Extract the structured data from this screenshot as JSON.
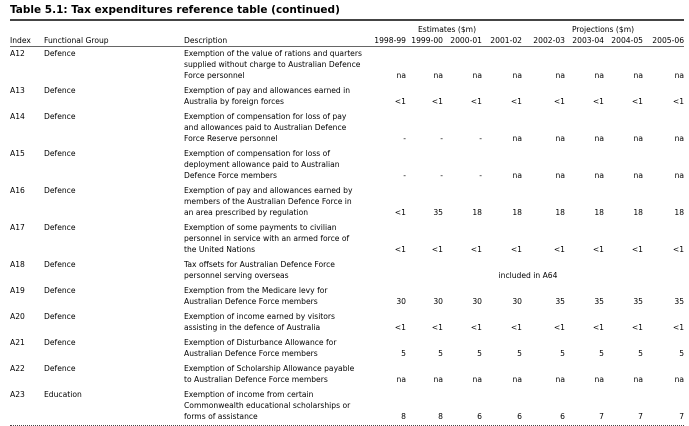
{
  "title": "Table 5.1:  Tax expenditures reference table (continued)",
  "header": {
    "estimates": "Estimates ($m)",
    "projections": "Projections ($m)",
    "index": "Index",
    "functional_group": "Functional Group",
    "description": "Description",
    "years": [
      "1998-99",
      "1999-00",
      "2000-01",
      "2001-02",
      "2002-03",
      "2003-04",
      "2004-05",
      "2005-06"
    ]
  },
  "rows": [
    {
      "index": "A12",
      "group": "Defence",
      "description": [
        "Exemption of the value of rations and quarters",
        "supplied without charge to Australian Defence",
        "Force personnel"
      ],
      "values": [
        "na",
        "na",
        "na",
        "na",
        "na",
        "na",
        "na",
        "na"
      ]
    },
    {
      "index": "A13",
      "group": "Defence",
      "description": [
        "Exemption of pay and allowances earned in",
        "Australia by foreign forces"
      ],
      "values": [
        "<1",
        "<1",
        "<1",
        "<1",
        "<1",
        "<1",
        "<1",
        "<1"
      ]
    },
    {
      "index": "A14",
      "group": "Defence",
      "description": [
        "Exemption of compensation for loss of pay",
        "and allowances paid to Australian Defence",
        "Force Reserve personnel"
      ],
      "values": [
        "-",
        "-",
        "-",
        "na",
        "na",
        "na",
        "na",
        "na"
      ]
    },
    {
      "index": "A15",
      "group": "Defence",
      "description": [
        "Exemption of compensation for loss of",
        "deployment allowance paid to Australian",
        "Defence Force members"
      ],
      "values": [
        "-",
        "-",
        "-",
        "na",
        "na",
        "na",
        "na",
        "na"
      ]
    },
    {
      "index": "A16",
      "group": "Defence",
      "description": [
        "Exemption of pay and allowances earned by",
        "members of the Australian Defence Force in",
        "an area prescribed by regulation"
      ],
      "values": [
        "<1",
        35,
        18,
        18,
        18,
        18,
        18,
        18
      ]
    },
    {
      "index": "A17",
      "group": "Defence",
      "description": [
        "Exemption of some payments to civilian",
        "personnel in service with an armed force of",
        "the United Nations"
      ],
      "values": [
        "<1",
        "<1",
        "<1",
        "<1",
        "<1",
        "<1",
        "<1",
        "<1"
      ]
    },
    {
      "index": "A18",
      "group": "Defence",
      "description": [
        "Tax offsets for Australian Defence Force",
        "personnel serving overseas"
      ],
      "note": "included in A64"
    },
    {
      "index": "A19",
      "group": "Defence",
      "description": [
        "Exemption from the Medicare levy for",
        "Australian Defence Force members"
      ],
      "values": [
        30,
        30,
        30,
        30,
        35,
        35,
        35,
        35
      ]
    },
    {
      "index": "A20",
      "group": "Defence",
      "description": [
        "Exemption of income earned by visitors",
        "assisting in the defence of Australia"
      ],
      "values": [
        "<1",
        "<1",
        "<1",
        "<1",
        "<1",
        "<1",
        "<1",
        "<1"
      ]
    },
    {
      "index": "A21",
      "group": "Defence",
      "description": [
        "Exemption of Disturbance Allowance for",
        "Australian Defence Force members"
      ],
      "values": [
        5,
        5,
        5,
        5,
        5,
        5,
        5,
        5
      ]
    },
    {
      "index": "A22",
      "group": "Defence",
      "description": [
        "Exemption of Scholarship Allowance payable",
        "to Australian Defence Force members"
      ],
      "values": [
        "na",
        "na",
        "na",
        "na",
        "na",
        "na",
        "na",
        "na"
      ]
    },
    {
      "index": "A23",
      "group": "Education",
      "description": [
        "Exemption of income from certain",
        "Commonwealth educational scholarships or",
        "forms of assistance"
      ],
      "values": [
        8,
        8,
        6,
        6,
        6,
        7,
        7,
        7
      ]
    }
  ]
}
